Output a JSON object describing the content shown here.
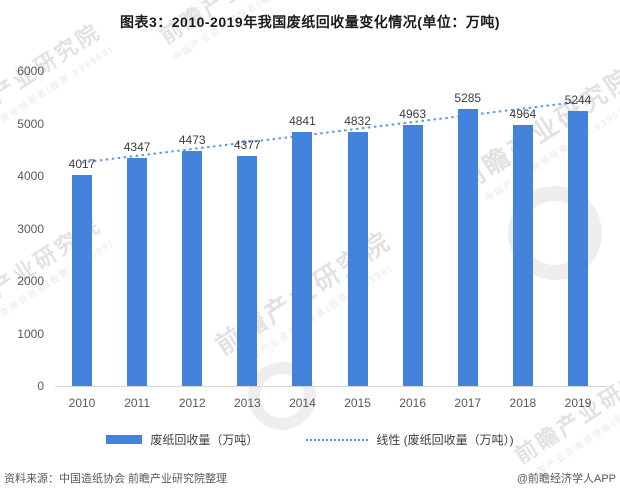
{
  "title": "图表3：2010-2019年我国废纸回收量变化情况(单位：万吨)",
  "chart_data": {
    "type": "bar",
    "categories": [
      "2010",
      "2011",
      "2012",
      "2013",
      "2014",
      "2015",
      "2016",
      "2017",
      "2018",
      "2019"
    ],
    "series": [
      {
        "name": "废纸回收量（万吨）",
        "values": [
          4017,
          4347,
          4473,
          4377,
          4841,
          4832,
          4963,
          5285,
          4964,
          5244
        ]
      }
    ],
    "trendline": {
      "name": "线性 (废纸回收量（万吨）)",
      "start_value": 4257,
      "end_value": 5412
    },
    "title": "图表3：2010-2019年我国废纸回收量变化情况(单位：万吨)",
    "xlabel": "",
    "ylabel": "",
    "ylim": [
      0,
      6000
    ],
    "y_ticks": [
      0,
      1000,
      2000,
      3000,
      4000,
      5000,
      6000
    ],
    "grid": false,
    "legend_position": "bottom",
    "colors": {
      "bar": "#4483dc",
      "trend": "#6195e3"
    }
  },
  "legend": {
    "bar_label": "废纸回收量（万吨）",
    "trend_label": "线性 (废纸回收量（万吨）)"
  },
  "footer": {
    "source": "资料来源：中国造纸协会 前瞻产业研究院整理",
    "credit": "@前瞻经济学人APP"
  },
  "watermark": {
    "brand": "前瞻产业研究院",
    "tagline": "中国产业咨询领导者(股票:839599)"
  }
}
